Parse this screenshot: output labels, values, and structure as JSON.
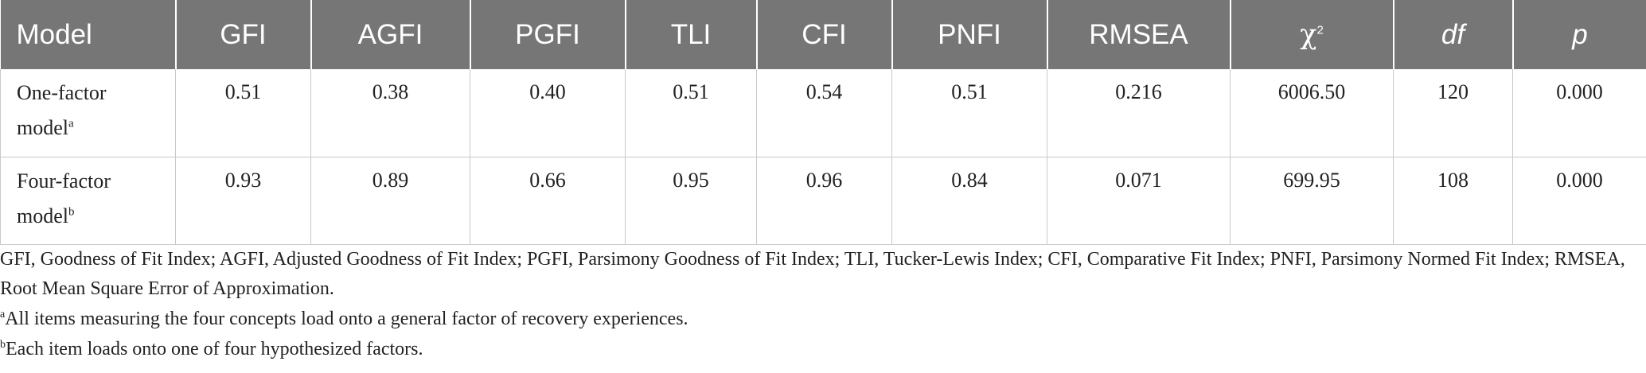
{
  "table": {
    "headers": [
      {
        "label": "Model",
        "italic": false,
        "sup": ""
      },
      {
        "label": "GFI",
        "italic": false,
        "sup": ""
      },
      {
        "label": "AGFI",
        "italic": false,
        "sup": ""
      },
      {
        "label": "PGFI",
        "italic": false,
        "sup": ""
      },
      {
        "label": "TLI",
        "italic": false,
        "sup": ""
      },
      {
        "label": "CFI",
        "italic": false,
        "sup": ""
      },
      {
        "label": "PNFI",
        "italic": false,
        "sup": ""
      },
      {
        "label": "RMSEA",
        "italic": false,
        "sup": ""
      },
      {
        "label": "χ",
        "italic": false,
        "sup": "2"
      },
      {
        "label": "df",
        "italic": true,
        "sup": ""
      },
      {
        "label": "p",
        "italic": true,
        "sup": ""
      }
    ],
    "rows": [
      {
        "model_line1": "One-factor",
        "model_line2": "model",
        "model_sup": "a",
        "values": [
          "0.51",
          "0.38",
          "0.40",
          "0.51",
          "0.54",
          "0.51",
          "0.216",
          "6006.50",
          "120",
          "0.000"
        ]
      },
      {
        "model_line1": "Four-factor",
        "model_line2": "model",
        "model_sup": "b",
        "values": [
          "0.93",
          "0.89",
          "0.66",
          "0.95",
          "0.96",
          "0.84",
          "0.071",
          "699.95",
          "108",
          "0.000"
        ]
      }
    ]
  },
  "footnotes": {
    "abbreviations": "GFI, Goodness of Fit Index; AGFI, Adjusted Goodness of Fit Index; PGFI, Parsimony Goodness of Fit Index; TLI, Tucker-Lewis Index; CFI, Comparative Fit Index; PNFI, Parsimony Normed Fit Index; RMSEA, Root Mean Square Error of Approximation.",
    "note_a_marker": "a",
    "note_a": "All items measuring the four concepts load onto a general factor of recovery experiences.",
    "note_b_marker": "b",
    "note_b": "Each item loads onto one of four hypothesized factors."
  }
}
